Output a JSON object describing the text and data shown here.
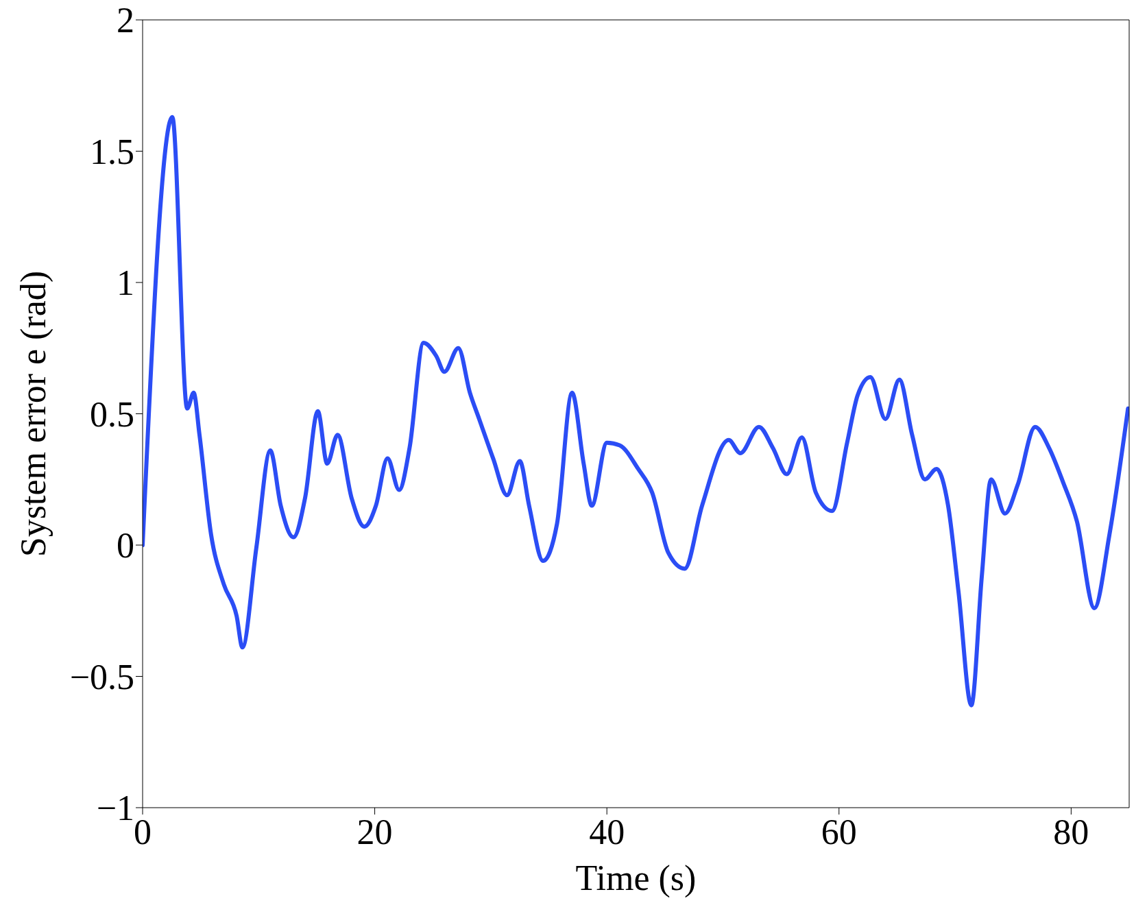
{
  "chart_data": {
    "type": "line",
    "xlabel": "Time (s)",
    "ylabel": "System error e (rad)",
    "xlim": [
      0,
      85
    ],
    "xticks": [
      0,
      20,
      40,
      60,
      80
    ],
    "ylim": [
      -1,
      2
    ],
    "yticks": [
      {
        "value": -1,
        "label": "−1"
      },
      {
        "value": -0.5,
        "label": "−0.5"
      },
      0,
      0.5,
      1,
      1.5,
      2
    ],
    "grid": false,
    "legend": false,
    "marker": "none",
    "line_style": "solid",
    "series": [
      {
        "color": "#2b4df5",
        "x": [
          0,
          2.56,
          3.84,
          4.4,
          4.9,
          5.9,
          7.0,
          8.1,
          8.6,
          9.8,
          11.0,
          11.9,
          13.0,
          14.0,
          15.1,
          15.9,
          16.8,
          18.0,
          19.1,
          20.1,
          21.1,
          22.1,
          23.0,
          24.2,
          25.3,
          26.0,
          27.2,
          28.2,
          29.0,
          30.2,
          31.4,
          32.5,
          33.3,
          34.5,
          35.7,
          37.0,
          38.0,
          38.7,
          40.0,
          41.1,
          42.7,
          43.9,
          45.3,
          46.7,
          48.2,
          50.5,
          51.5,
          53.1,
          54.3,
          55.5,
          56.8,
          58.0,
          59.4,
          60.7,
          61.6,
          62.7,
          64.0,
          65.2,
          66.3,
          67.4,
          68.4,
          69.4,
          70.3,
          71.4,
          72.3,
          73.1,
          74.3,
          75.4,
          76.9,
          78.1,
          79.3,
          80.5,
          82.0,
          83.3,
          84.9
        ],
        "values": [
          0,
          1.63,
          0.52,
          0.58,
          0.42,
          0.04,
          -0.15,
          -0.27,
          -0.39,
          -0.01,
          0.36,
          0.15,
          0.03,
          0.18,
          0.51,
          0.31,
          0.42,
          0.18,
          0.07,
          0.15,
          0.33,
          0.21,
          0.37,
          0.77,
          0.72,
          0.66,
          0.75,
          0.58,
          0.48,
          0.33,
          0.19,
          0.32,
          0.15,
          -0.06,
          0.08,
          0.58,
          0.31,
          0.15,
          0.39,
          0.38,
          0.29,
          0.2,
          -0.03,
          -0.09,
          0.15,
          0.4,
          0.35,
          0.45,
          0.37,
          0.27,
          0.41,
          0.2,
          0.13,
          0.39,
          0.57,
          0.64,
          0.48,
          0.63,
          0.42,
          0.25,
          0.29,
          0.15,
          -0.18,
          -0.61,
          -0.12,
          0.25,
          0.12,
          0.23,
          0.45,
          0.37,
          0.24,
          0.09,
          -0.24,
          0.04,
          0.52
        ]
      }
    ]
  }
}
